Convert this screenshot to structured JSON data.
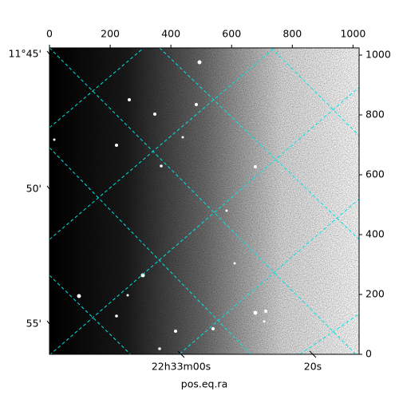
{
  "chart_data": {
    "type": "image",
    "xlabel": "pos.eq.ra",
    "xlim": [
      0,
      1020
    ],
    "xticks": [
      0,
      200,
      400,
      600,
      800,
      1000
    ],
    "ylim": [
      0,
      1024
    ],
    "yticks": [
      0,
      200,
      400,
      600,
      800,
      1000
    ],
    "ra_lim": [
      1960,
      2007.03
    ],
    "ra_ticks": [
      {
        "value": 1980,
        "label": "22h33m00s"
      },
      {
        "value": 2000,
        "label": "20s"
      }
    ],
    "dec_lim": [
      11.7461,
      11.9354
    ],
    "dec_ticks": [
      {
        "value": 11.75,
        "label": "11°45'"
      },
      {
        "value": 11.8333,
        "label": "50'"
      },
      {
        "value": 11.9167,
        "label": "55'"
      }
    ],
    "grid": true,
    "colormap": "gray"
  }
}
